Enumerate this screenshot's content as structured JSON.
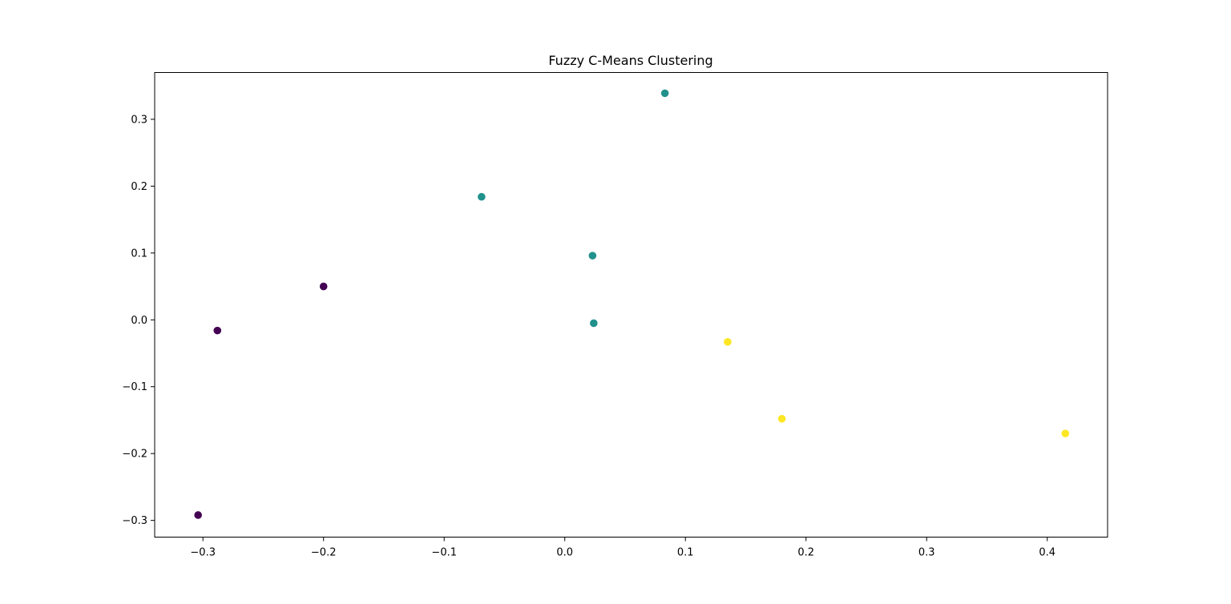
{
  "chart_data": {
    "type": "scatter",
    "title": "Fuzzy C-Means Clustering",
    "xlabel": "",
    "ylabel": "",
    "xlim": [
      -0.34,
      0.45
    ],
    "ylim": [
      -0.325,
      0.37
    ],
    "xticks": [
      -0.3,
      -0.2,
      -0.1,
      0.0,
      0.1,
      0.2,
      0.3,
      0.4
    ],
    "xtick_labels": [
      "−0.3",
      "−0.2",
      "−0.1",
      "0.0",
      "0.1",
      "0.2",
      "0.3",
      "0.4"
    ],
    "yticks": [
      -0.3,
      -0.2,
      -0.1,
      0.0,
      0.1,
      0.2,
      0.3
    ],
    "ytick_labels": [
      "−0.3",
      "−0.2",
      "−0.1",
      "0.0",
      "0.1",
      "0.2",
      "0.3"
    ],
    "grid": false,
    "legend": false,
    "cluster_colors": [
      "#440154",
      "#21918c",
      "#fde725"
    ],
    "points": [
      {
        "x": -0.304,
        "y": -0.292,
        "cluster": 0
      },
      {
        "x": -0.288,
        "y": -0.016,
        "cluster": 0
      },
      {
        "x": -0.2,
        "y": 0.05,
        "cluster": 0
      },
      {
        "x": -0.069,
        "y": 0.184,
        "cluster": 1
      },
      {
        "x": 0.023,
        "y": 0.096,
        "cluster": 1
      },
      {
        "x": 0.024,
        "y": -0.005,
        "cluster": 1
      },
      {
        "x": 0.083,
        "y": 0.339,
        "cluster": 1
      },
      {
        "x": 0.135,
        "y": -0.033,
        "cluster": 2
      },
      {
        "x": 0.18,
        "y": -0.148,
        "cluster": 2
      },
      {
        "x": 0.415,
        "y": -0.17,
        "cluster": 2
      }
    ]
  }
}
